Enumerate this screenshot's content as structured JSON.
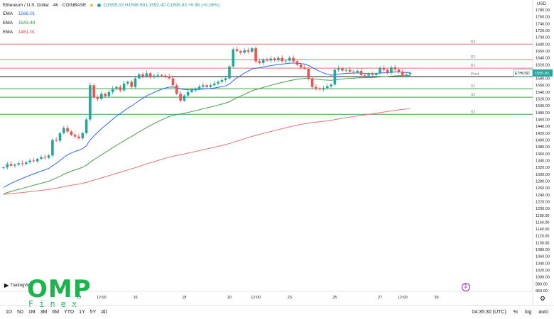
{
  "header": {
    "symbol": "Ethereum / U.S. Dollar · 4h · COINBASE",
    "ohlc": "O1595.03 H1596.58 L1592.40 C1595.83 +0.98 (+0.06%)"
  },
  "legend": [
    {
      "label": "EMA",
      "value": "1586.01",
      "color": "#2962ff"
    },
    {
      "label": "EMA",
      "value": "1543.49",
      "color": "#1e9e2e"
    },
    {
      "label": "EMA",
      "value": "1461.01",
      "color": "#e53935"
    }
  ],
  "currency_label": "USD",
  "price_tag": {
    "symbol": "ETHUSD",
    "value": "1595.83"
  },
  "tv_label": "TradingView",
  "logo": {
    "big": "OMP",
    "small": "Finex"
  },
  "range_buttons": [
    "1D",
    "5D",
    "1M",
    "3M",
    "6M",
    "YTD",
    "1Y",
    "5Y",
    "All"
  ],
  "time": "04:35:30 (UTC)",
  "right_controls": [
    "%",
    "log",
    "auto"
  ],
  "chart_data": {
    "type": "candlestick",
    "ylim": [
      960,
      1780
    ],
    "y_ticks": [
      1780,
      1760,
      1740,
      1720,
      1700,
      1680,
      1660,
      1640,
      1620,
      1600,
      1580,
      1560,
      1540,
      1520,
      1500,
      1480,
      1460,
      1440,
      1420,
      1400,
      1380,
      1360,
      1340,
      1320,
      1300,
      1280,
      1260,
      1240,
      1220,
      1200,
      1180,
      1160,
      1140,
      1120,
      1100,
      1080,
      1060,
      1040,
      1020,
      1000,
      980,
      960
    ],
    "x_ticks": [
      {
        "label": "13",
        "index": 20
      },
      {
        "label": "12:00",
        "index": 26
      },
      {
        "label": "16",
        "index": 35
      },
      {
        "label": "18",
        "index": 48
      },
      {
        "label": "20",
        "index": 60
      },
      {
        "label": "12:00",
        "index": 67
      },
      {
        "label": "23",
        "index": 76
      },
      {
        "label": "25",
        "index": 88
      },
      {
        "label": "27",
        "index": 100
      },
      {
        "label": "12:00",
        "index": 106
      },
      {
        "label": "30",
        "index": 115
      }
    ],
    "levels": [
      {
        "name": "R3",
        "value": 1680,
        "color": "#e57373"
      },
      {
        "name": "R2",
        "value": 1635,
        "color": "#e57373"
      },
      {
        "name": "R1",
        "value": 1610,
        "color": "#e57373"
      },
      {
        "name": "Pivot",
        "value": 1585,
        "color": "#131722"
      },
      {
        "name": "S1",
        "value": 1550,
        "color": "#43a047"
      },
      {
        "name": "S2",
        "value": 1525,
        "color": "#43a047"
      },
      {
        "name": "S3",
        "value": 1475,
        "color": "#43a047"
      }
    ],
    "close": [
      1320,
      1330,
      1325,
      1328,
      1332,
      1330,
      1335,
      1340,
      1338,
      1345,
      1350,
      1348,
      1355,
      1400,
      1398,
      1420,
      1435,
      1425,
      1415,
      1410,
      1405,
      1420,
      1460,
      1560,
      1525,
      1520,
      1535,
      1528,
      1540,
      1550,
      1555,
      1545,
      1565,
      1570,
      1555,
      1580,
      1592,
      1586,
      1595,
      1583,
      1588,
      1590,
      1588,
      1586,
      1580,
      1560,
      1535,
      1515,
      1530,
      1540,
      1545,
      1550,
      1556,
      1560,
      1555,
      1560,
      1565,
      1570,
      1575,
      1580,
      1615,
      1665,
      1660,
      1655,
      1662,
      1658,
      1668,
      1630,
      1625,
      1635,
      1632,
      1638,
      1633,
      1640,
      1630,
      1632,
      1640,
      1630,
      1620,
      1612,
      1608,
      1580,
      1555,
      1550,
      1548,
      1552,
      1557,
      1562,
      1605,
      1610,
      1603,
      1605,
      1600,
      1598,
      1602,
      1590,
      1588,
      1592,
      1590,
      1595,
      1610,
      1605,
      1596,
      1612,
      1606,
      1600,
      1590,
      1592,
      1595.83
    ]
  }
}
